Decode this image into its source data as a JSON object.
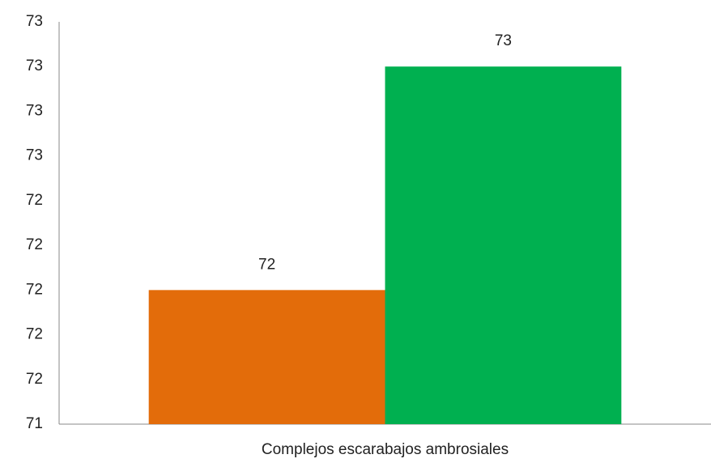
{
  "chart_data": {
    "type": "bar",
    "categories": [
      "Complejos escarabajos ambrosiales"
    ],
    "series": [
      {
        "color": "#e36c0a",
        "values": [
          72
        ]
      },
      {
        "color": "#00b050",
        "values": [
          73
        ]
      }
    ],
    "ylim": [
      71.4,
      73.2
    ],
    "yticks": [
      {
        "value": 71.4,
        "label": "71"
      },
      {
        "value": 71.6,
        "label": "72"
      },
      {
        "value": 71.8,
        "label": "72"
      },
      {
        "value": 72.0,
        "label": "72"
      },
      {
        "value": 72.2,
        "label": "72"
      },
      {
        "value": 72.4,
        "label": "72"
      },
      {
        "value": 72.6,
        "label": "73"
      },
      {
        "value": 72.8,
        "label": "73"
      },
      {
        "value": 73.0,
        "label": "73"
      },
      {
        "value": 73.2,
        "label": "73"
      }
    ],
    "grid": false
  }
}
